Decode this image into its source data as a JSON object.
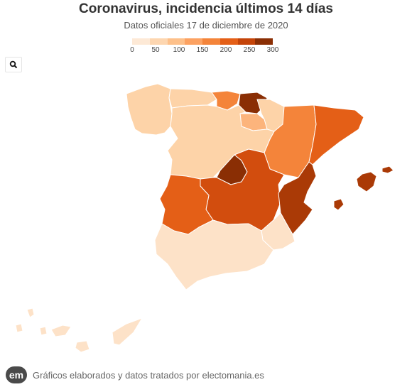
{
  "header": {
    "title": "Coronavirus, incidencia últimos 14 días",
    "subtitle": "Datos oficiales 17 de diciembre de 2020"
  },
  "legend": {
    "ticks": [
      "0",
      "50",
      "100",
      "150",
      "200",
      "250",
      "300"
    ],
    "colors": [
      "#fde9d6",
      "#fdd6b0",
      "#fdc08a",
      "#fca262",
      "#f4843a",
      "#e45f17",
      "#c44409",
      "#8a2e04"
    ]
  },
  "controls": {
    "zoom_icon": "search-icon"
  },
  "map_data": {
    "type": "choropleth",
    "value_range": [
      0,
      300
    ],
    "regions": [
      {
        "name": "Galicia",
        "color": "#fdd3a8"
      },
      {
        "name": "Asturias",
        "color": "#fdd3a8"
      },
      {
        "name": "Cantabria",
        "color": "#f4843a"
      },
      {
        "name": "País Vasco",
        "color": "#8a2e04"
      },
      {
        "name": "Navarra",
        "color": "#fdd3a8"
      },
      {
        "name": "La Rioja",
        "color": "#fcb47c"
      },
      {
        "name": "Aragón",
        "color": "#f4843a"
      },
      {
        "name": "Cataluña",
        "color": "#e45f17"
      },
      {
        "name": "Castilla y León",
        "color": "#fdd3a8"
      },
      {
        "name": "Madrid",
        "color": "#8a2e04"
      },
      {
        "name": "Castilla-La Mancha",
        "color": "#d24d0e"
      },
      {
        "name": "Extremadura",
        "color": "#e45f17"
      },
      {
        "name": "Comunitat Valenciana",
        "color": "#aa3a06"
      },
      {
        "name": "Murcia",
        "color": "#fde2c8"
      },
      {
        "name": "Andalucía",
        "color": "#fde2c8"
      },
      {
        "name": "Illes Balears",
        "color": "#aa3a06"
      },
      {
        "name": "Canarias",
        "color": "#fde2c8"
      }
    ]
  },
  "footer": {
    "logo_text": "em",
    "text": "Gráficos elaborados y datos tratados por electomania.es"
  }
}
